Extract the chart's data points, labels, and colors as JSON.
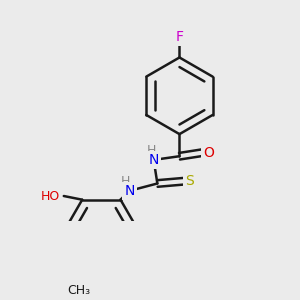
{
  "bg_color": "#ebebeb",
  "bond_color": "#1a1a1a",
  "bond_width": 1.8,
  "atoms": {
    "F": {
      "color": "#cc00cc",
      "fontsize": 10
    },
    "O": {
      "color": "#dd0000",
      "fontsize": 10
    },
    "N": {
      "color": "#0000ee",
      "fontsize": 10
    },
    "S": {
      "color": "#aaaa00",
      "fontsize": 10
    },
    "H": {
      "color": "#888888",
      "fontsize": 9
    },
    "C": {
      "color": "#1a1a1a",
      "fontsize": 10
    }
  },
  "figsize": [
    3.0,
    3.0
  ],
  "dpi": 100
}
